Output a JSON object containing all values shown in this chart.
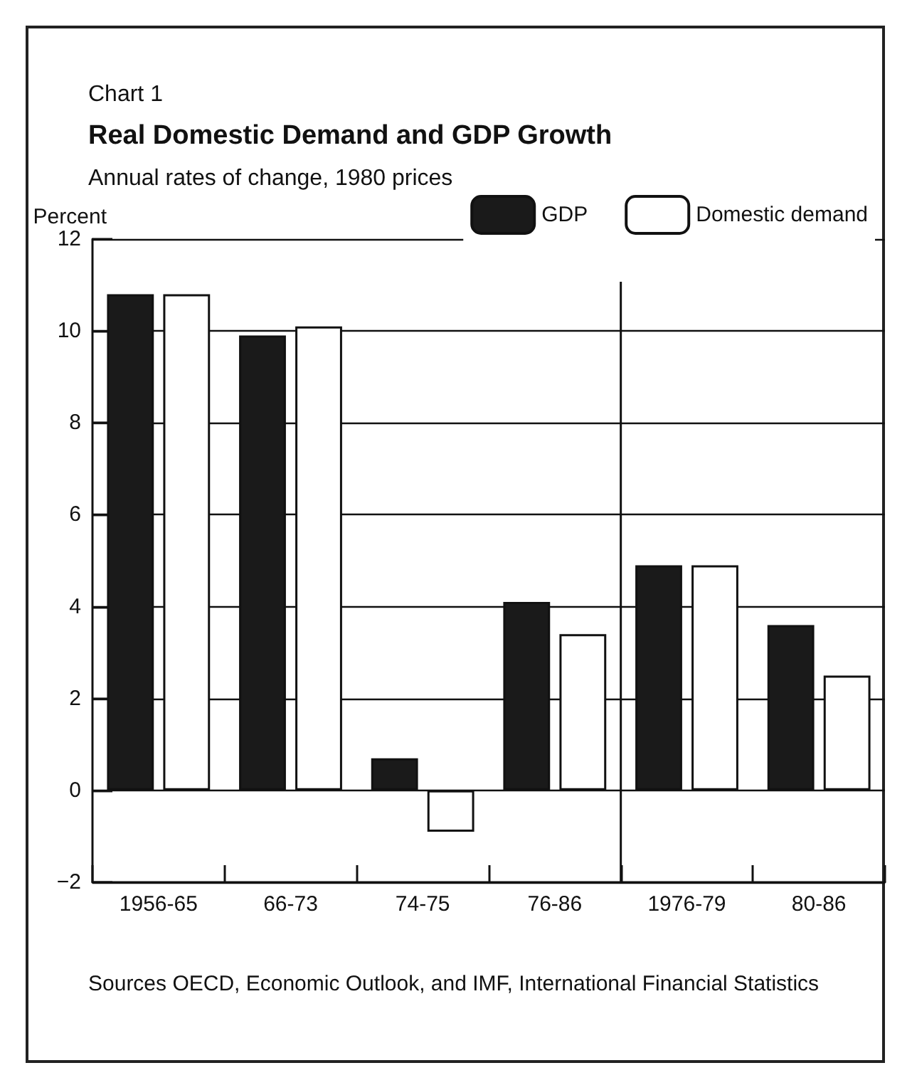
{
  "chart_data": {
    "type": "bar",
    "title": "Real Domestic Demand and GDP Growth",
    "subtitle": "Annual rates of change, 1980 prices",
    "ylabel": "Percent",
    "categories": [
      "1956-65",
      "66-73",
      "74-75",
      "76-86",
      "1976-79",
      "80-86"
    ],
    "series": [
      {
        "name": "GDP",
        "color": "#1a1a1a",
        "values": [
          10.8,
          9.9,
          0.7,
          4.1,
          4.9,
          3.6
        ]
      },
      {
        "name": "Domestic demand",
        "color": "#ffffff",
        "values": [
          10.8,
          10.1,
          -0.9,
          3.4,
          4.9,
          2.5
        ]
      }
    ],
    "ref_lines": [
      {
        "axis": "x",
        "value": "1976-79",
        "color": "#111111"
      }
    ],
    "ylim": [
      -2,
      12
    ],
    "yticks": [
      -2,
      0,
      2,
      4,
      6,
      8,
      10,
      12
    ],
    "grid": "y",
    "legend": "top right",
    "annotations": [
      "Chart 1",
      "Sources  OECD, Economic Outlook, and IMF, International Financial Statistics"
    ]
  }
}
